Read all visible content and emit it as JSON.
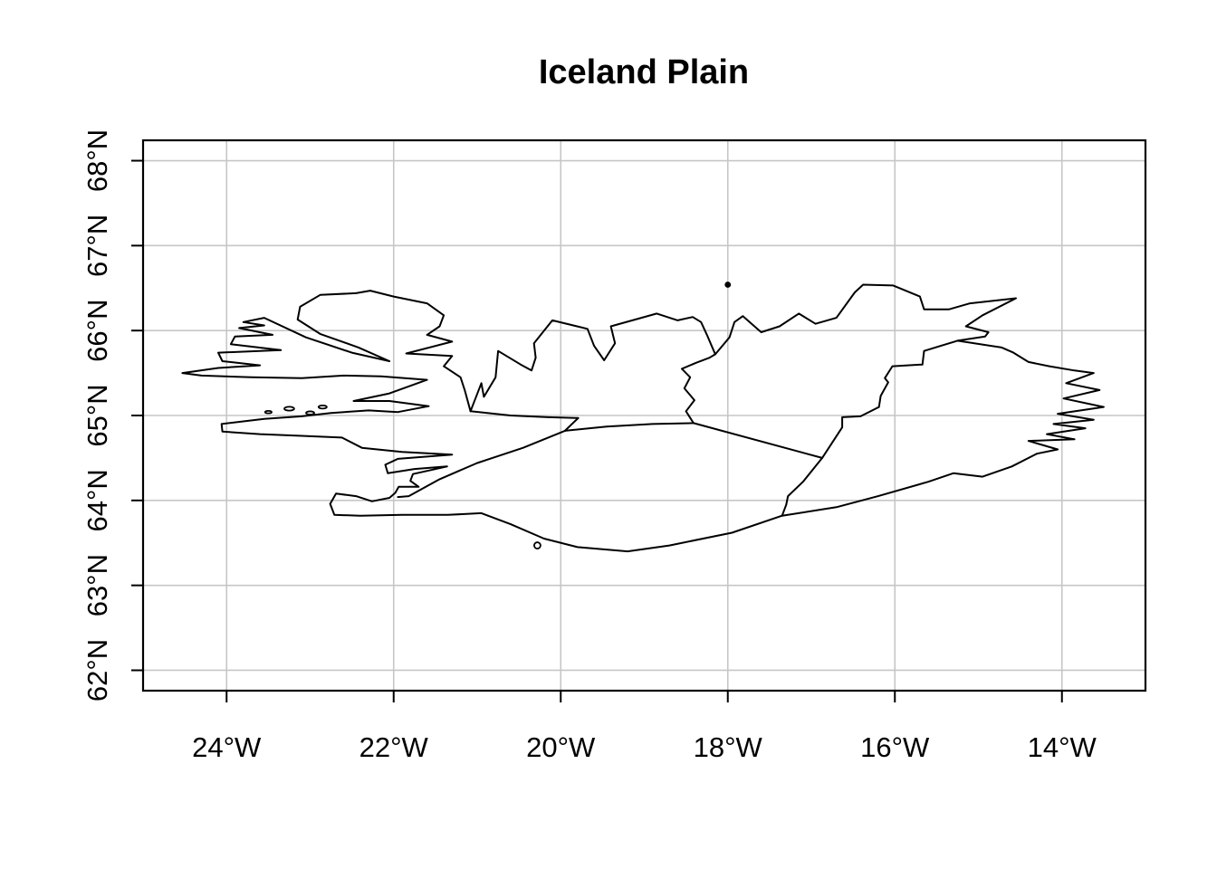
{
  "figure": {
    "title": "Iceland Plain"
  },
  "style": {
    "background": "#ffffff",
    "line_color": "#000000",
    "grid_color": "#c6c6c6",
    "text_color": "#000000"
  },
  "chart_data": {
    "type": "map",
    "title": "Iceland Plain",
    "region": "Iceland",
    "projection": "plain longitude/latitude (equirectangular)",
    "grid": true,
    "legend": false,
    "xlim": [
      -25,
      -13
    ],
    "ylim": [
      61.76,
      68.24
    ],
    "x_ticks": [
      {
        "value": -24,
        "label": "24°W"
      },
      {
        "value": -22,
        "label": "22°W"
      },
      {
        "value": -20,
        "label": "20°W"
      },
      {
        "value": -18,
        "label": "18°W"
      },
      {
        "value": -16,
        "label": "16°W"
      },
      {
        "value": -14,
        "label": "14°W"
      }
    ],
    "y_ticks": [
      {
        "value": 62,
        "label": "62°N"
      },
      {
        "value": 63,
        "label": "63°N"
      },
      {
        "value": 64,
        "label": "64°N"
      },
      {
        "value": 65,
        "label": "65°N"
      },
      {
        "value": 66,
        "label": "66°N"
      },
      {
        "value": 67,
        "label": "67°N"
      },
      {
        "value": 68,
        "label": "68°N"
      }
    ],
    "series": [
      {
        "name": "coastline",
        "type": "polygon",
        "closed": true,
        "points": [
          [
            -22.71,
            63.83
          ],
          [
            -22.76,
            63.96
          ],
          [
            -22.69,
            64.08
          ],
          [
            -22.45,
            64.05
          ],
          [
            -22.26,
            63.99
          ],
          [
            -22.05,
            64.03
          ],
          [
            -21.98,
            64.09
          ],
          [
            -21.94,
            64.16
          ],
          [
            -21.7,
            64.16
          ],
          [
            -21.8,
            64.23
          ],
          [
            -21.77,
            64.31
          ],
          [
            -21.36,
            64.4
          ],
          [
            -21.75,
            64.37
          ],
          [
            -22.07,
            64.32
          ],
          [
            -22.1,
            64.42
          ],
          [
            -21.95,
            64.49
          ],
          [
            -21.3,
            64.54
          ],
          [
            -21.9,
            64.57
          ],
          [
            -22.38,
            64.62
          ],
          [
            -22.62,
            64.74
          ],
          [
            -23.1,
            64.76
          ],
          [
            -23.6,
            64.78
          ],
          [
            -24.05,
            64.81
          ],
          [
            -24.06,
            64.9
          ],
          [
            -23.55,
            64.96
          ],
          [
            -23.1,
            64.99
          ],
          [
            -22.75,
            65.03
          ],
          [
            -22.3,
            65.06
          ],
          [
            -21.95,
            65.04
          ],
          [
            -21.58,
            65.11
          ],
          [
            -22.05,
            65.17
          ],
          [
            -22.48,
            65.17
          ],
          [
            -22.05,
            65.26
          ],
          [
            -21.6,
            65.42
          ],
          [
            -22.15,
            65.46
          ],
          [
            -22.6,
            65.47
          ],
          [
            -23.1,
            65.44
          ],
          [
            -23.7,
            65.45
          ],
          [
            -24.3,
            65.47
          ],
          [
            -24.53,
            65.5
          ],
          [
            -24.1,
            65.56
          ],
          [
            -23.6,
            65.59
          ],
          [
            -24.05,
            65.64
          ],
          [
            -24.1,
            65.74
          ],
          [
            -23.35,
            65.77
          ],
          [
            -23.95,
            65.84
          ],
          [
            -23.9,
            65.93
          ],
          [
            -23.45,
            65.95
          ],
          [
            -23.85,
            66.03
          ],
          [
            -23.55,
            66.06
          ],
          [
            -23.8,
            66.1
          ],
          [
            -23.55,
            66.15
          ],
          [
            -23.05,
            65.92
          ],
          [
            -22.5,
            65.74
          ],
          [
            -22.05,
            65.64
          ],
          [
            -22.42,
            65.8
          ],
          [
            -22.88,
            65.96
          ],
          [
            -23.15,
            66.13
          ],
          [
            -23.12,
            66.28
          ],
          [
            -22.88,
            66.42
          ],
          [
            -22.45,
            66.44
          ],
          [
            -22.28,
            66.47
          ],
          [
            -22.0,
            66.4
          ],
          [
            -21.6,
            66.32
          ],
          [
            -21.4,
            66.18
          ],
          [
            -21.45,
            66.05
          ],
          [
            -21.6,
            65.95
          ],
          [
            -21.3,
            65.87
          ],
          [
            -21.85,
            65.73
          ],
          [
            -21.3,
            65.7
          ],
          [
            -21.4,
            65.58
          ],
          [
            -21.2,
            65.45
          ],
          [
            -21.15,
            65.3
          ],
          [
            -21.08,
            65.05
          ],
          [
            -20.95,
            65.38
          ],
          [
            -20.92,
            65.22
          ],
          [
            -20.78,
            65.45
          ],
          [
            -20.75,
            65.76
          ],
          [
            -20.48,
            65.6
          ],
          [
            -20.35,
            65.53
          ],
          [
            -20.3,
            65.68
          ],
          [
            -20.32,
            65.85
          ],
          [
            -20.1,
            66.12
          ],
          [
            -19.68,
            66.02
          ],
          [
            -19.6,
            65.82
          ],
          [
            -19.48,
            65.65
          ],
          [
            -19.35,
            65.85
          ],
          [
            -19.4,
            66.05
          ],
          [
            -18.85,
            66.2
          ],
          [
            -18.6,
            66.12
          ],
          [
            -18.42,
            66.16
          ],
          [
            -18.32,
            66.1
          ],
          [
            -18.25,
            65.95
          ],
          [
            -18.15,
            65.72
          ],
          [
            -17.98,
            65.92
          ],
          [
            -17.92,
            66.1
          ],
          [
            -17.82,
            66.17
          ],
          [
            -17.6,
            65.98
          ],
          [
            -17.38,
            66.05
          ],
          [
            -17.15,
            66.2
          ],
          [
            -16.95,
            66.08
          ],
          [
            -16.7,
            66.15
          ],
          [
            -16.48,
            66.45
          ],
          [
            -16.38,
            66.54
          ],
          [
            -16.02,
            66.53
          ],
          [
            -15.7,
            66.4
          ],
          [
            -15.65,
            66.25
          ],
          [
            -15.35,
            66.25
          ],
          [
            -15.1,
            66.32
          ],
          [
            -14.55,
            66.38
          ],
          [
            -14.95,
            66.18
          ],
          [
            -15.15,
            66.05
          ],
          [
            -14.88,
            65.98
          ],
          [
            -14.92,
            65.93
          ],
          [
            -15.25,
            65.88
          ],
          [
            -14.72,
            65.8
          ],
          [
            -14.58,
            65.74
          ],
          [
            -14.4,
            65.63
          ],
          [
            -14.15,
            65.58
          ],
          [
            -13.85,
            65.53
          ],
          [
            -13.62,
            65.5
          ],
          [
            -13.95,
            65.38
          ],
          [
            -13.55,
            65.3
          ],
          [
            -13.98,
            65.2
          ],
          [
            -13.5,
            65.1
          ],
          [
            -14.05,
            65.02
          ],
          [
            -13.62,
            64.95
          ],
          [
            -14.1,
            64.9
          ],
          [
            -13.72,
            64.85
          ],
          [
            -14.18,
            64.78
          ],
          [
            -13.85,
            64.72
          ],
          [
            -14.4,
            64.7
          ],
          [
            -14.05,
            64.6
          ],
          [
            -14.3,
            64.55
          ],
          [
            -14.6,
            64.4
          ],
          [
            -14.95,
            64.28
          ],
          [
            -15.3,
            64.32
          ],
          [
            -15.6,
            64.22
          ],
          [
            -16.2,
            64.05
          ],
          [
            -16.7,
            63.92
          ],
          [
            -17.35,
            63.82
          ],
          [
            -17.95,
            63.62
          ],
          [
            -18.7,
            63.47
          ],
          [
            -19.2,
            63.4
          ],
          [
            -19.8,
            63.45
          ],
          [
            -20.2,
            63.55
          ],
          [
            -20.6,
            63.72
          ],
          [
            -20.95,
            63.85
          ],
          [
            -21.35,
            63.83
          ],
          [
            -21.9,
            63.83
          ],
          [
            -22.4,
            63.82
          ]
        ]
      },
      {
        "name": "internal-boundary-northwest",
        "type": "line",
        "closed": false,
        "points": [
          [
            -21.08,
            65.05
          ],
          [
            -20.6,
            65.0
          ],
          [
            -20.15,
            64.98
          ],
          [
            -19.79,
            64.97
          ],
          [
            -19.95,
            64.82
          ]
        ]
      },
      {
        "name": "internal-boundary-west",
        "type": "line",
        "closed": false,
        "points": [
          [
            -19.95,
            64.82
          ],
          [
            -19.45,
            64.87
          ],
          [
            -18.9,
            64.9
          ],
          [
            -18.41,
            64.91
          ]
        ]
      },
      {
        "name": "internal-boundary-southwest",
        "type": "line",
        "closed": false,
        "points": [
          [
            -19.95,
            64.82
          ],
          [
            -20.45,
            64.62
          ],
          [
            -21.0,
            64.44
          ],
          [
            -21.45,
            64.25
          ],
          [
            -21.82,
            64.05
          ],
          [
            -21.95,
            64.04
          ]
        ]
      },
      {
        "name": "internal-boundary-north",
        "type": "line",
        "closed": false,
        "points": [
          [
            -18.41,
            64.91
          ],
          [
            -18.5,
            65.05
          ],
          [
            -18.4,
            65.18
          ],
          [
            -18.52,
            65.32
          ],
          [
            -18.45,
            65.45
          ],
          [
            -18.55,
            65.55
          ],
          [
            -18.38,
            65.62
          ],
          [
            -18.22,
            65.68
          ],
          [
            -18.15,
            65.72
          ]
        ]
      },
      {
        "name": "internal-boundary-central",
        "type": "line",
        "closed": false,
        "points": [
          [
            -18.41,
            64.91
          ],
          [
            -16.87,
            64.5
          ]
        ]
      },
      {
        "name": "internal-boundary-south",
        "type": "line",
        "closed": false,
        "points": [
          [
            -16.87,
            64.5
          ],
          [
            -17.1,
            64.22
          ],
          [
            -17.28,
            64.05
          ],
          [
            -17.3,
            63.95
          ],
          [
            -17.35,
            63.82
          ]
        ]
      },
      {
        "name": "internal-boundary-northeast",
        "type": "line",
        "closed": false,
        "points": [
          [
            -16.87,
            64.5
          ],
          [
            -16.63,
            64.86
          ],
          [
            -16.63,
            64.98
          ],
          [
            -16.41,
            64.99
          ],
          [
            -16.19,
            65.1
          ],
          [
            -16.17,
            65.23
          ],
          [
            -16.08,
            65.39
          ],
          [
            -16.12,
            65.44
          ],
          [
            -16.03,
            65.58
          ],
          [
            -15.67,
            65.6
          ],
          [
            -15.65,
            65.76
          ],
          [
            -15.25,
            65.88
          ]
        ]
      }
    ],
    "islands": [
      {
        "name": "island-dot-north",
        "lon": -18.0,
        "lat": 66.54,
        "r": 2.5,
        "filled": true,
        "flat": false
      },
      {
        "name": "island-circle-south",
        "lon": -20.28,
        "lat": 63.47,
        "r": 3.5,
        "filled": false,
        "flat": false
      },
      {
        "name": "islet-west-bay-1",
        "lon": -23.25,
        "lat": 65.08,
        "r": 3.0,
        "filled": false,
        "flat": true
      },
      {
        "name": "islet-west-bay-2",
        "lon": -23.0,
        "lat": 65.03,
        "r": 2.5,
        "filled": false,
        "flat": true
      },
      {
        "name": "islet-west-bay-3",
        "lon": -22.85,
        "lat": 65.1,
        "r": 2.5,
        "filled": false,
        "flat": true
      },
      {
        "name": "islet-west-bay-4",
        "lon": -23.5,
        "lat": 65.04,
        "r": 2.0,
        "filled": false,
        "flat": true
      }
    ]
  }
}
